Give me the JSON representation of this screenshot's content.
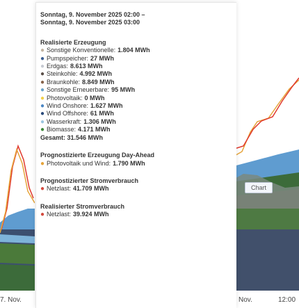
{
  "tooltip": {
    "header_line1": "Sonntag, 9. November 2025 02:00 –",
    "header_line2": "Sonntag, 9. November 2025 03:00",
    "realisierte_erzeugung": {
      "title": "Realisierte Erzeugung",
      "items": [
        {
          "label": "Sonstige Konventionelle:",
          "value": "1.804 MWh",
          "color": "#c2b4a2"
        },
        {
          "label": "Pumpspeicher:",
          "value": "27 MWh",
          "color": "#3c5f93"
        },
        {
          "label": "Erdgas:",
          "value": "8.613 MWh",
          "color": "#c6cad2"
        },
        {
          "label": "Steinkohle:",
          "value": "4.992 MWh",
          "color": "#5a4e47"
        },
        {
          "label": "Braunkohle:",
          "value": "8.849 MWh",
          "color": "#86634a"
        },
        {
          "label": "Sonstige Erneuerbare:",
          "value": "95 MWh",
          "color": "#6aa3c9"
        },
        {
          "label": "Photovoltaik:",
          "value": "0 MWh",
          "color": "#f3d04a"
        },
        {
          "label": "Wind Onshore:",
          "value": "1.627 MWh",
          "color": "#4b87c4"
        },
        {
          "label": "Wind Offshore:",
          "value": "61 MWh",
          "color": "#2a4a7a"
        },
        {
          "label": "Wasserkraft:",
          "value": "1.306 MWh",
          "color": "#9cc6e0"
        },
        {
          "label": "Biomasse:",
          "value": "4.171 MWh",
          "color": "#3f8a3c"
        }
      ],
      "total": "Gesamt: 31.546 MWh"
    },
    "prognose_erzeugung": {
      "title": "Prognostizierte Erzeugung Day-Ahead",
      "items": [
        {
          "label": "Photovoltaik und Wind:",
          "value": "1.790 MWh",
          "color": "#e6a43a"
        }
      ]
    },
    "prognose_verbrauch": {
      "title": "Prognostizierter Stromverbrauch",
      "items": [
        {
          "label": "Netzlast:",
          "value": "41.709 MWh",
          "color": "#d34a3e"
        }
      ]
    },
    "realisierter_verbrauch": {
      "title": "Realisierter Stromverbrauch",
      "items": [
        {
          "label": "Netzlast:",
          "value": "39.924 MWh",
          "color": "#d34a3e"
        }
      ]
    }
  },
  "chart_tag": "Chart",
  "x_ticks": [
    "7. Nov.",
    "Nov.",
    "12:00"
  ]
}
